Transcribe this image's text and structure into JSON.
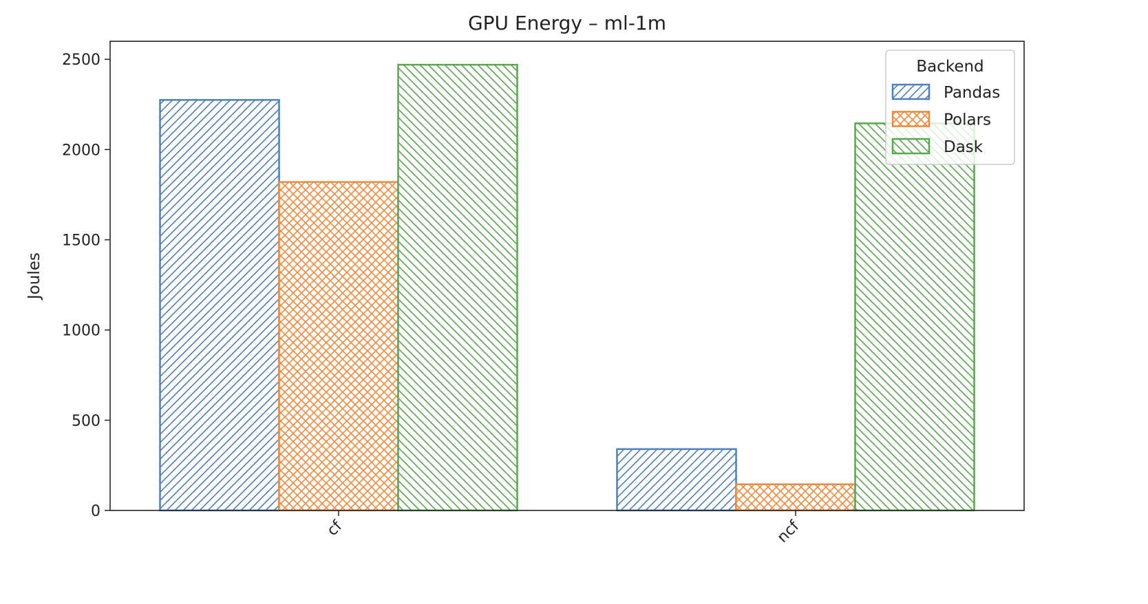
{
  "chart_data": {
    "type": "bar",
    "title": "GPU Energy – ml-1m",
    "xlabel": "",
    "ylabel": "Joules",
    "categories": [
      "cf",
      "ncf"
    ],
    "series": [
      {
        "name": "Pandas",
        "values": [
          2275,
          340
        ],
        "color": "#4a7fc1",
        "hatch": "forward-diagonal"
      },
      {
        "name": "Polars",
        "values": [
          1820,
          145
        ],
        "color": "#f0893a",
        "hatch": "cross"
      },
      {
        "name": "Dask",
        "values": [
          2470,
          2145
        ],
        "color": "#57a84b",
        "hatch": "back-diagonal"
      }
    ],
    "ylim": [
      0,
      2600
    ],
    "yticks": [
      0,
      500,
      1000,
      1500,
      2000,
      2500
    ],
    "legend": {
      "title": "Backend",
      "placement": "top-right"
    },
    "grid": false
  }
}
